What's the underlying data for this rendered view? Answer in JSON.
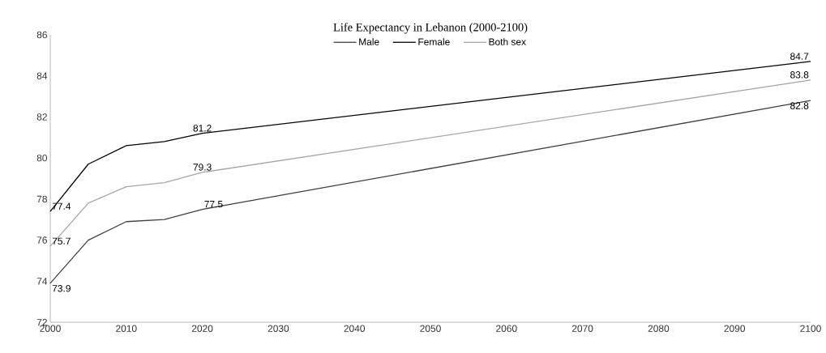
{
  "chart_data": {
    "type": "line",
    "title": "Life Expectancy in Lebanon (2000-2100)",
    "x": [
      2000,
      2005,
      2010,
      2015,
      2020,
      2100
    ],
    "series": [
      {
        "name": "Male",
        "color": "#404040",
        "values": [
          73.9,
          76.0,
          76.9,
          77.0,
          77.5,
          82.8
        ],
        "value_labels": [
          "73.9",
          null,
          null,
          null,
          "77.5",
          "82.8"
        ]
      },
      {
        "name": "Female",
        "color": "#000000",
        "values": [
          77.4,
          79.7,
          80.6,
          80.8,
          81.2,
          84.7
        ],
        "value_labels": [
          "77.4",
          null,
          null,
          null,
          "81.2",
          "84.7"
        ]
      },
      {
        "name": "Both sex",
        "color": "#a6a6a6",
        "values": [
          75.7,
          77.8,
          78.6,
          78.8,
          79.3,
          83.8
        ],
        "value_labels": [
          "75.7",
          null,
          null,
          null,
          "79.3",
          "83.8"
        ]
      }
    ],
    "xlim": [
      2000,
      2100
    ],
    "ylim": [
      72,
      86
    ],
    "xticks": [
      2000,
      2010,
      2020,
      2030,
      2040,
      2050,
      2060,
      2070,
      2080,
      2090,
      2100
    ],
    "yticks": [
      72,
      74,
      76,
      78,
      80,
      82,
      84,
      86
    ],
    "grid": false,
    "legend": "top",
    "marker": "none",
    "line_style": "solid"
  }
}
